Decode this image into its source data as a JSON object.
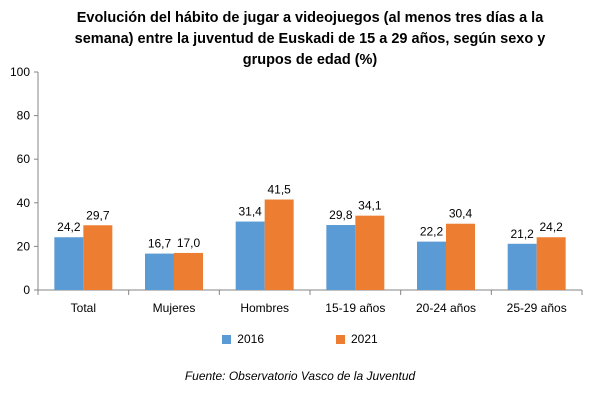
{
  "chart_data": {
    "type": "bar",
    "title_lines": [
      "Evolución del hábito de jugar a videojuegos (al menos tres días a la",
      "semana) entre la juventud de Euskadi de 15 a 29 años, según sexo y",
      "grupos de edad (%)"
    ],
    "categories": [
      "Total",
      "Mujeres",
      "Hombres",
      "15-19 años",
      "20-24 años",
      "25-29 años"
    ],
    "series": [
      {
        "name": "2016",
        "color": "#5b9bd5",
        "values": [
          24.2,
          16.7,
          31.4,
          29.8,
          22.2,
          21.2
        ],
        "labels": [
          "24,2",
          "16,7",
          "31,4",
          "29,8",
          "22,2",
          "21,2"
        ]
      },
      {
        "name": "2021",
        "color": "#ed7d31",
        "values": [
          29.7,
          17.0,
          41.5,
          34.1,
          30.4,
          24.2
        ],
        "labels": [
          "29,7",
          "17,0",
          "41,5",
          "34,1",
          "30,4",
          "24,2"
        ]
      }
    ],
    "yticks": [
      "0",
      "20",
      "40",
      "60",
      "80",
      "100"
    ],
    "ylim": [
      0,
      100
    ],
    "xlabel": "",
    "ylabel": "",
    "legend_position": "bottom",
    "grid": false,
    "source": "Fuente: Observatorio Vasco de la Juventud"
  }
}
